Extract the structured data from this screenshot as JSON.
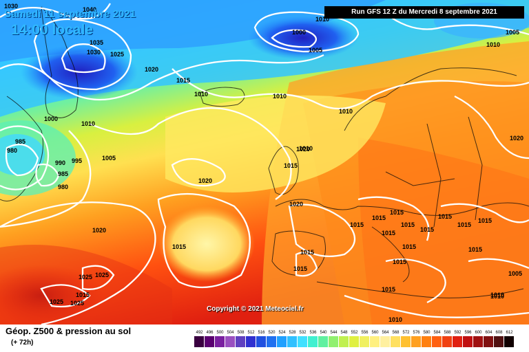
{
  "header": {
    "date": "Samedi 11 septembre 2021",
    "local_time": "14:00 locale",
    "run": "Run GFS 12 Z du Mercredi 8 septembre 2021"
  },
  "copyright": "Copyright © 2021 Meteociel.fr",
  "legend": {
    "title": "Géop. Z500 & pression au sol",
    "subtitle": "(+ 72h)",
    "scale_values": [
      "492",
      "496",
      "500",
      "504",
      "508",
      "512",
      "516",
      "520",
      "524",
      "528",
      "532",
      "536",
      "540",
      "544",
      "548",
      "552",
      "556",
      "560",
      "564",
      "568",
      "572",
      "576",
      "580",
      "584",
      "588",
      "592",
      "596",
      "600",
      "604",
      "608",
      "612"
    ],
    "scale_colors": [
      "#3a0040",
      "#5a0070",
      "#7a20a0",
      "#9a50c0",
      "#6040c0",
      "#3030d0",
      "#2050e0",
      "#2070f0",
      "#20a0ff",
      "#30c0ff",
      "#40e0ff",
      "#40f0d0",
      "#60f0a0",
      "#90f070",
      "#c0f050",
      "#e0f040",
      "#f0f060",
      "#fff080",
      "#fff0a0",
      "#ffe060",
      "#ffc030",
      "#ffa020",
      "#ff8010",
      "#ff6010",
      "#f04010",
      "#e02010",
      "#c01010",
      "#a01010",
      "#801010",
      "#501010",
      "#100000"
    ]
  },
  "isobars": [
    {
      "text": "1030"
    },
    {
      "text": "1040"
    },
    {
      "text": "1035"
    },
    {
      "text": "1030"
    },
    {
      "text": "1025"
    },
    {
      "text": "1020"
    },
    {
      "text": "1015"
    },
    {
      "text": "1010"
    },
    {
      "text": "1010"
    },
    {
      "text": "1000"
    },
    {
      "text": "1010"
    },
    {
      "text": "985"
    },
    {
      "text": "980"
    },
    {
      "text": "990"
    },
    {
      "text": "995"
    },
    {
      "text": "985"
    },
    {
      "text": "980"
    },
    {
      "text": "1005"
    },
    {
      "text": "1020"
    },
    {
      "text": "1020"
    },
    {
      "text": "1015"
    },
    {
      "text": "1010"
    },
    {
      "text": "1015"
    },
    {
      "text": "1020"
    },
    {
      "text": "1015"
    },
    {
      "text": "1015"
    },
    {
      "text": "1015"
    },
    {
      "text": "1015"
    },
    {
      "text": "1015"
    },
    {
      "text": "1015"
    },
    {
      "text": "1015"
    },
    {
      "text": "1015"
    },
    {
      "text": "1015"
    },
    {
      "text": "1015"
    },
    {
      "text": "1015"
    },
    {
      "text": "1015"
    },
    {
      "text": "1015"
    },
    {
      "text": "1015"
    },
    {
      "text": "1015"
    },
    {
      "text": "1010"
    },
    {
      "text": "1010"
    },
    {
      "text": "1010"
    },
    {
      "text": "1020"
    },
    {
      "text": "1025"
    },
    {
      "text": "1025"
    },
    {
      "text": "1025"
    },
    {
      "text": "1025"
    },
    {
      "text": "1000"
    },
    {
      "text": "1005"
    },
    {
      "text": "1010"
    },
    {
      "text": "1005"
    },
    {
      "text": "1010"
    },
    {
      "text": "1015"
    },
    {
      "text": "1005"
    },
    {
      "text": "1010"
    },
    {
      "text": "1020"
    }
  ]
}
